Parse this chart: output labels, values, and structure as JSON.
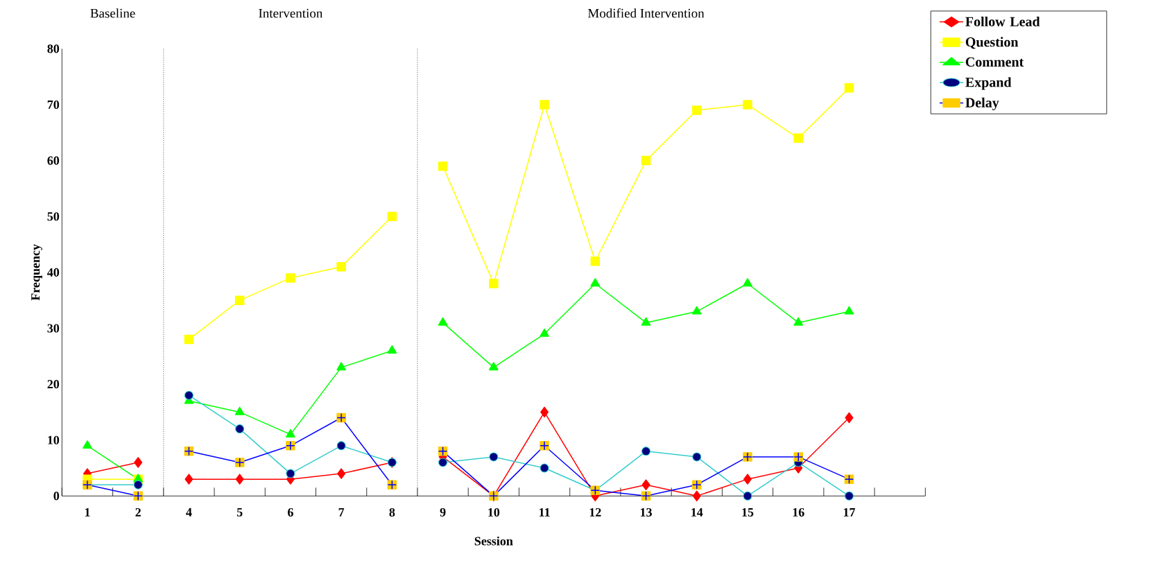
{
  "chart_data": {
    "type": "line",
    "xlabel": "Session",
    "ylabel": "Frequency",
    "categories": [
      "1",
      "2",
      "4",
      "5",
      "6",
      "7",
      "8",
      "9",
      "10",
      "11",
      "12",
      "13",
      "14",
      "15",
      "16",
      "17",
      null
    ],
    "series": [
      {
        "name": "Follow Lead",
        "color": "#ff0000",
        "marker": "diamond",
        "values": [
          4,
          6,
          3,
          3,
          3,
          4,
          6,
          7,
          0,
          15,
          0,
          2,
          0,
          3,
          5,
          14,
          null
        ]
      },
      {
        "name": "Question",
        "color": "#ffff00",
        "marker": "square",
        "values": [
          3,
          3,
          28,
          35,
          39,
          41,
          50,
          59,
          38,
          70,
          42,
          60,
          69,
          70,
          64,
          73,
          null
        ]
      },
      {
        "name": "Comment",
        "color": "#00ff00",
        "marker": "triangle",
        "values": [
          9,
          3,
          17,
          15,
          11,
          23,
          26,
          31,
          23,
          29,
          38,
          31,
          33,
          38,
          31,
          33,
          null
        ]
      },
      {
        "name": "Expand",
        "color": "#33cccc",
        "marker": "circle",
        "values": [
          2,
          2,
          18,
          12,
          4,
          9,
          6,
          6,
          7,
          5,
          1,
          8,
          7,
          0,
          6,
          0,
          null
        ]
      },
      {
        "name": "Delay",
        "color": "#0000ff",
        "marker": "cross",
        "values": [
          2,
          0,
          8,
          6,
          9,
          14,
          2,
          8,
          0,
          9,
          1,
          0,
          2,
          7,
          7,
          3,
          null
        ]
      }
    ],
    "ylim": [
      0,
      80
    ],
    "yticks": [
      0,
      10,
      20,
      30,
      40,
      50,
      60,
      70,
      80
    ],
    "annotations": [
      "Baseline",
      "Intervention",
      "Modified Intervention"
    ],
    "grid": false,
    "legend": "top right"
  }
}
